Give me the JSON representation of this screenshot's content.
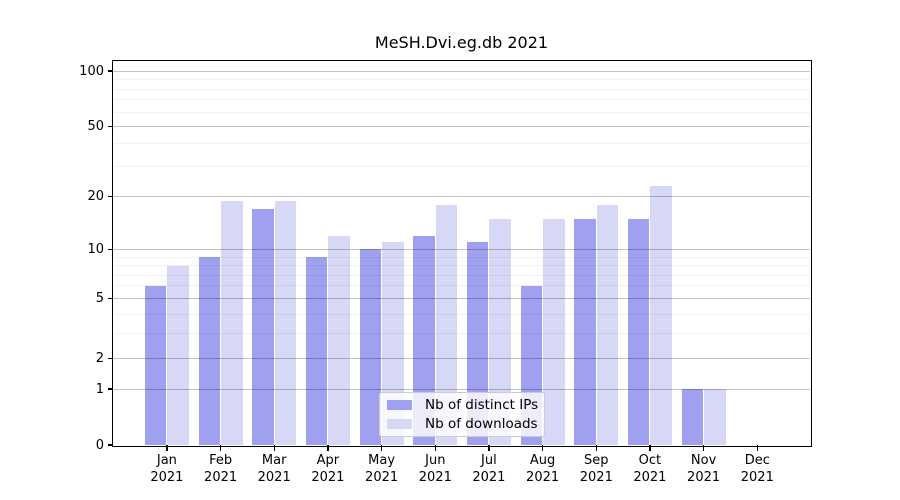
{
  "chart_data": {
    "type": "bar",
    "title": "MeSH.Dvi.eg.db 2021",
    "categories": [
      "Jan 2021",
      "Feb 2021",
      "Mar 2021",
      "Apr 2021",
      "May 2021",
      "Jun 2021",
      "Jul 2021",
      "Aug 2021",
      "Sep 2021",
      "Oct 2021",
      "Nov 2021",
      "Dec 2021"
    ],
    "series": [
      {
        "name": "Nb of distinct IPs",
        "color": "#a0a0f0",
        "values": [
          6,
          9,
          17,
          9,
          10,
          12,
          11,
          6,
          15,
          15,
          1,
          0
        ]
      },
      {
        "name": "Nb of downloads",
        "color": "#d7d7f6",
        "values": [
          8,
          19,
          19,
          12,
          11,
          18,
          15,
          15,
          18,
          23,
          1,
          0
        ]
      }
    ],
    "y_axis": {
      "scale": "log1p",
      "major_ticks": [
        0,
        1,
        2,
        5,
        10,
        20,
        50,
        100
      ],
      "minor_gridlines": [
        3,
        4,
        6,
        7,
        8,
        9,
        30,
        40,
        60,
        70,
        80,
        90
      ],
      "range": [
        0,
        112
      ]
    },
    "xlabel": "",
    "ylabel": "",
    "grid": true,
    "legend_position": "inside-bottom-center"
  },
  "colors": {
    "series_ips": "#a0a0f0",
    "series_downloads": "#d7d7f6",
    "axis": "#000000",
    "grid_major": "rgba(0,0,0,0.24)",
    "grid_minor": "rgba(0,0,0,0.055)",
    "legend_border": "#cccccc",
    "legend_background": "rgba(255,255,255,0.8)"
  }
}
